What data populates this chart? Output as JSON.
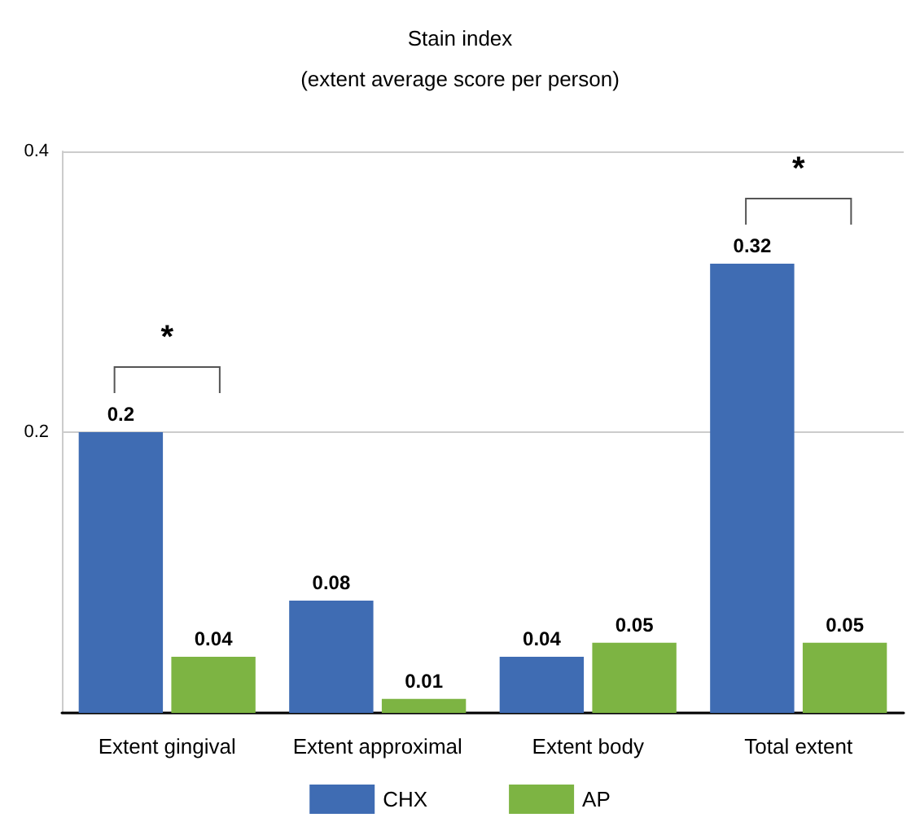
{
  "chart_data": {
    "type": "bar",
    "title": "Stain index",
    "subtitle": "(extent average score per person)",
    "categories": [
      "Extent gingival",
      "Extent approximal",
      "Extent body",
      "Total extent"
    ],
    "series": [
      {
        "name": "CHX",
        "color": "#3f6cb3",
        "values": [
          0.2,
          0.08,
          0.04,
          0.32
        ]
      },
      {
        "name": "AP",
        "color": "#7db443",
        "values": [
          0.04,
          0.01,
          0.05,
          0.05
        ]
      }
    ],
    "ylim": [
      0,
      0.4
    ],
    "yticks": [
      {
        "value": 0,
        "label": null
      },
      0.2,
      0.4
    ],
    "grid": "y",
    "legend": "bottom",
    "data_labels": true,
    "annotations": [
      "*",
      "*"
    ]
  }
}
